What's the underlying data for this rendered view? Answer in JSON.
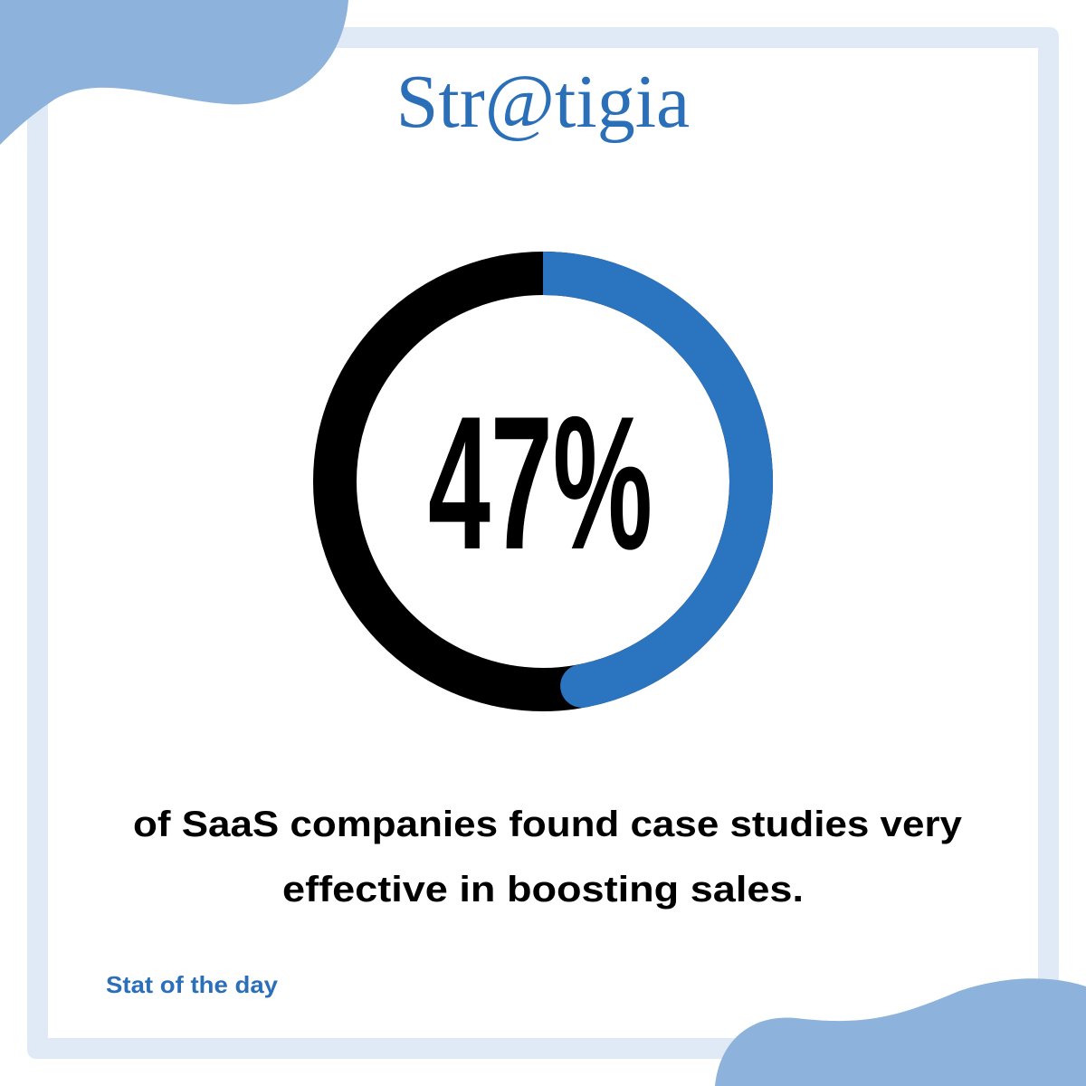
{
  "logo": "Str@tigia",
  "chart_data": {
    "type": "donut",
    "values": [
      47
    ],
    "value_labels": [
      "47%"
    ],
    "value_range": [
      0,
      100
    ],
    "color": "#2a74c0",
    "track_color": "#000000",
    "caption": [
      "of SaaS companies found case studies very",
      "effective in boosting sales."
    ]
  },
  "footer": "Stat of the day"
}
